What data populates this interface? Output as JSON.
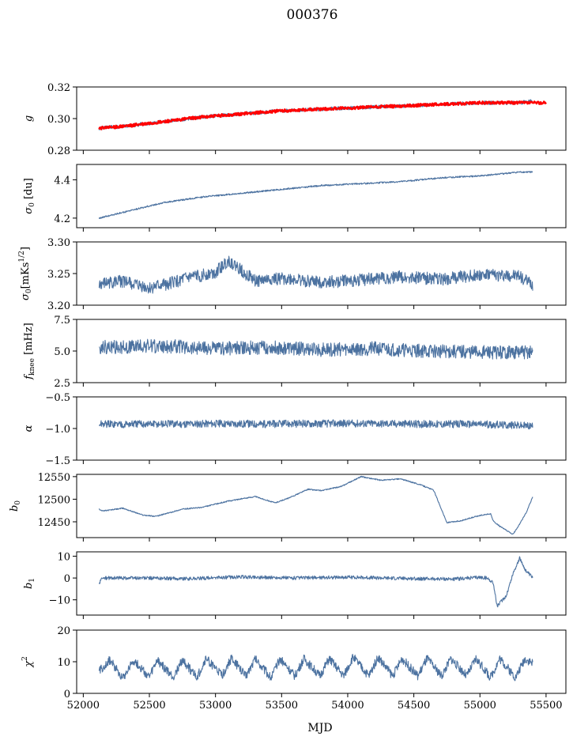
{
  "figure": {
    "title": "000376",
    "xlabel": "MJD"
  },
  "colors": {
    "series": "#4c72a0",
    "overlay": "#ff0000"
  },
  "chart_data": [
    {
      "type": "line",
      "ylabel": "g",
      "ylim": [
        0.28,
        0.32
      ],
      "xlim": [
        51950,
        55650
      ],
      "yticks": [
        0.28,
        0.3,
        0.32
      ],
      "ytick_labels": [
        "0.28",
        "0.30",
        "0.32"
      ],
      "series": [
        {
          "x": [
            52120,
            52300,
            52600,
            52900,
            53200,
            53500,
            53800,
            54100,
            54400,
            54700,
            55000,
            55300,
            55400
          ],
          "values": [
            0.294,
            0.295,
            0.298,
            0.301,
            0.303,
            0.305,
            0.306,
            0.307,
            0.308,
            0.309,
            0.31,
            0.31,
            0.311
          ],
          "noise": 0.0012,
          "color": "#4c72a0"
        },
        {
          "x": [
            52120,
            52300,
            52600,
            52900,
            53200,
            53500,
            53800,
            54100,
            54400,
            54700,
            55000,
            55300,
            55500
          ],
          "values": [
            0.294,
            0.295,
            0.298,
            0.301,
            0.303,
            0.305,
            0.306,
            0.307,
            0.308,
            0.309,
            0.31,
            0.31,
            0.31
          ],
          "noise": 0.0009,
          "color": "#ff0000"
        }
      ]
    },
    {
      "type": "line",
      "ylabel": "σ0 [du]",
      "ylim": [
        4.15,
        4.48
      ],
      "xlim": [
        51950,
        55650
      ],
      "yticks": [
        4.2,
        4.4
      ],
      "ytick_labels": [
        "4.2",
        "4.4"
      ],
      "series": [
        {
          "x": [
            52120,
            52300,
            52600,
            52900,
            53200,
            53500,
            53800,
            54100,
            54400,
            54700,
            55000,
            55300,
            55400
          ],
          "values": [
            4.2,
            4.23,
            4.28,
            4.31,
            4.33,
            4.35,
            4.37,
            4.38,
            4.39,
            4.41,
            4.42,
            4.44,
            4.44
          ],
          "noise": 0.004,
          "color": "#4c72a0"
        }
      ]
    },
    {
      "type": "line",
      "ylabel": "σ0[mK s^1/2]",
      "ylim": [
        3.2,
        3.3
      ],
      "xlim": [
        51950,
        55650
      ],
      "yticks": [
        3.2,
        3.25,
        3.3
      ],
      "ytick_labels": [
        "3.20",
        "3.25",
        "3.30"
      ],
      "series": [
        {
          "x": [
            52120,
            52300,
            52500,
            52800,
            53000,
            53100,
            53300,
            53500,
            53800,
            54100,
            54400,
            54700,
            55000,
            55300,
            55400
          ],
          "values": [
            3.232,
            3.238,
            3.226,
            3.243,
            3.252,
            3.27,
            3.238,
            3.242,
            3.236,
            3.24,
            3.245,
            3.241,
            3.248,
            3.246,
            3.232
          ],
          "noise": 0.01,
          "color": "#4c72a0"
        }
      ]
    },
    {
      "type": "line",
      "ylabel": "f_knee [mHz]",
      "ylim": [
        2.5,
        7.5
      ],
      "xlim": [
        51950,
        55650
      ],
      "yticks": [
        2.5,
        5.0,
        7.5
      ],
      "ytick_labels": [
        "2.5",
        "5.0",
        "7.5"
      ],
      "series": [
        {
          "x": [
            52120,
            52600,
            53000,
            53400,
            53800,
            54200,
            54600,
            55000,
            55400
          ],
          "values": [
            5.3,
            5.4,
            5.2,
            5.3,
            5.1,
            5.2,
            5.0,
            4.9,
            4.9
          ],
          "noise": 0.55,
          "color": "#4c72a0"
        }
      ]
    },
    {
      "type": "line",
      "ylabel": "α",
      "ylim": [
        -1.5,
        -0.5
      ],
      "xlim": [
        51950,
        55650
      ],
      "yticks": [
        -1.5,
        -1.0,
        -0.5
      ],
      "ytick_labels": [
        "−1.5",
        "−1.0",
        "−0.5"
      ],
      "series": [
        {
          "x": [
            52120,
            52600,
            53000,
            53400,
            53800,
            54200,
            54600,
            55000,
            55400
          ],
          "values": [
            -0.93,
            -0.93,
            -0.92,
            -0.93,
            -0.92,
            -0.92,
            -0.93,
            -0.93,
            -0.96
          ],
          "noise": 0.06,
          "color": "#4c72a0"
        }
      ]
    },
    {
      "type": "line",
      "ylabel": "b0",
      "ylim": [
        12415,
        12555
      ],
      "xlim": [
        51950,
        55650
      ],
      "yticks": [
        12450,
        12500,
        12550
      ],
      "ytick_labels": [
        "12450",
        "12500",
        "12550"
      ],
      "series": [
        {
          "x": [
            52120,
            52150,
            52300,
            52450,
            52550,
            52750,
            52900,
            53100,
            53300,
            53450,
            53550,
            53700,
            53800,
            53950,
            54100,
            54250,
            54400,
            54550,
            54650,
            54750,
            54850,
            55000,
            55080,
            55100,
            55150,
            55250,
            55300,
            55350,
            55400
          ],
          "values": [
            12478,
            12474,
            12480,
            12465,
            12462,
            12478,
            12482,
            12496,
            12506,
            12492,
            12502,
            12522,
            12519,
            12528,
            12550,
            12542,
            12545,
            12532,
            12520,
            12448,
            12452,
            12464,
            12468,
            12452,
            12440,
            12422,
            12445,
            12470,
            12506
          ],
          "noise": 1.2,
          "color": "#4c72a0"
        }
      ]
    },
    {
      "type": "line",
      "ylabel": "b1",
      "ylim": [
        -17,
        12
      ],
      "xlim": [
        51950,
        55650
      ],
      "yticks": [
        -10,
        0,
        10
      ],
      "ytick_labels": [
        "−10",
        "0",
        "10"
      ],
      "series": [
        {
          "x": [
            52120,
            52140,
            52400,
            52800,
            53200,
            53600,
            54000,
            54400,
            54800,
            55000,
            55050,
            55100,
            55130,
            55200,
            55250,
            55300,
            55350,
            55400
          ],
          "values": [
            -3,
            0,
            0,
            -0.3,
            0.5,
            0,
            0.4,
            -0.2,
            -0.5,
            0.3,
            0,
            -2,
            -13,
            -8,
            2,
            9,
            3,
            0
          ],
          "noise": 0.8,
          "color": "#4c72a0"
        }
      ]
    },
    {
      "type": "line",
      "ylabel": "χ2",
      "ylim": [
        0,
        20
      ],
      "xlim": [
        51950,
        55650
      ],
      "yticks": [
        0,
        10,
        20
      ],
      "ytick_labels": [
        "0",
        "10",
        "20"
      ],
      "series": [
        {
          "x": [
            52120,
            52200,
            52300,
            52380,
            52500,
            52560,
            52680,
            52750,
            52860,
            52930,
            53050,
            53120,
            53230,
            53300,
            53420,
            53490,
            53600,
            53670,
            53790,
            53860,
            53970,
            54040,
            54160,
            54230,
            54340,
            54410,
            54530,
            54600,
            54710,
            54780,
            54900,
            54970,
            55080,
            55150,
            55270,
            55340,
            55400
          ],
          "values": [
            7,
            10.5,
            5,
            10.5,
            5,
            10.5,
            5,
            10.5,
            5,
            11,
            5.5,
            11,
            5.5,
            11,
            5,
            11,
            5.5,
            11,
            5.5,
            11,
            5.5,
            11.5,
            5.5,
            11.5,
            5.5,
            11,
            5.5,
            11,
            5.5,
            11,
            5.5,
            11,
            5,
            11,
            5,
            11,
            9.5
          ],
          "noise": 1.4,
          "color": "#4c72a0"
        }
      ]
    }
  ],
  "xaxis": {
    "ticks": [
      52000,
      52500,
      53000,
      53500,
      54000,
      54500,
      55000,
      55500
    ],
    "tick_labels": [
      "52000",
      "52500",
      "53000",
      "53500",
      "54000",
      "54500",
      "55000",
      "55500"
    ]
  }
}
